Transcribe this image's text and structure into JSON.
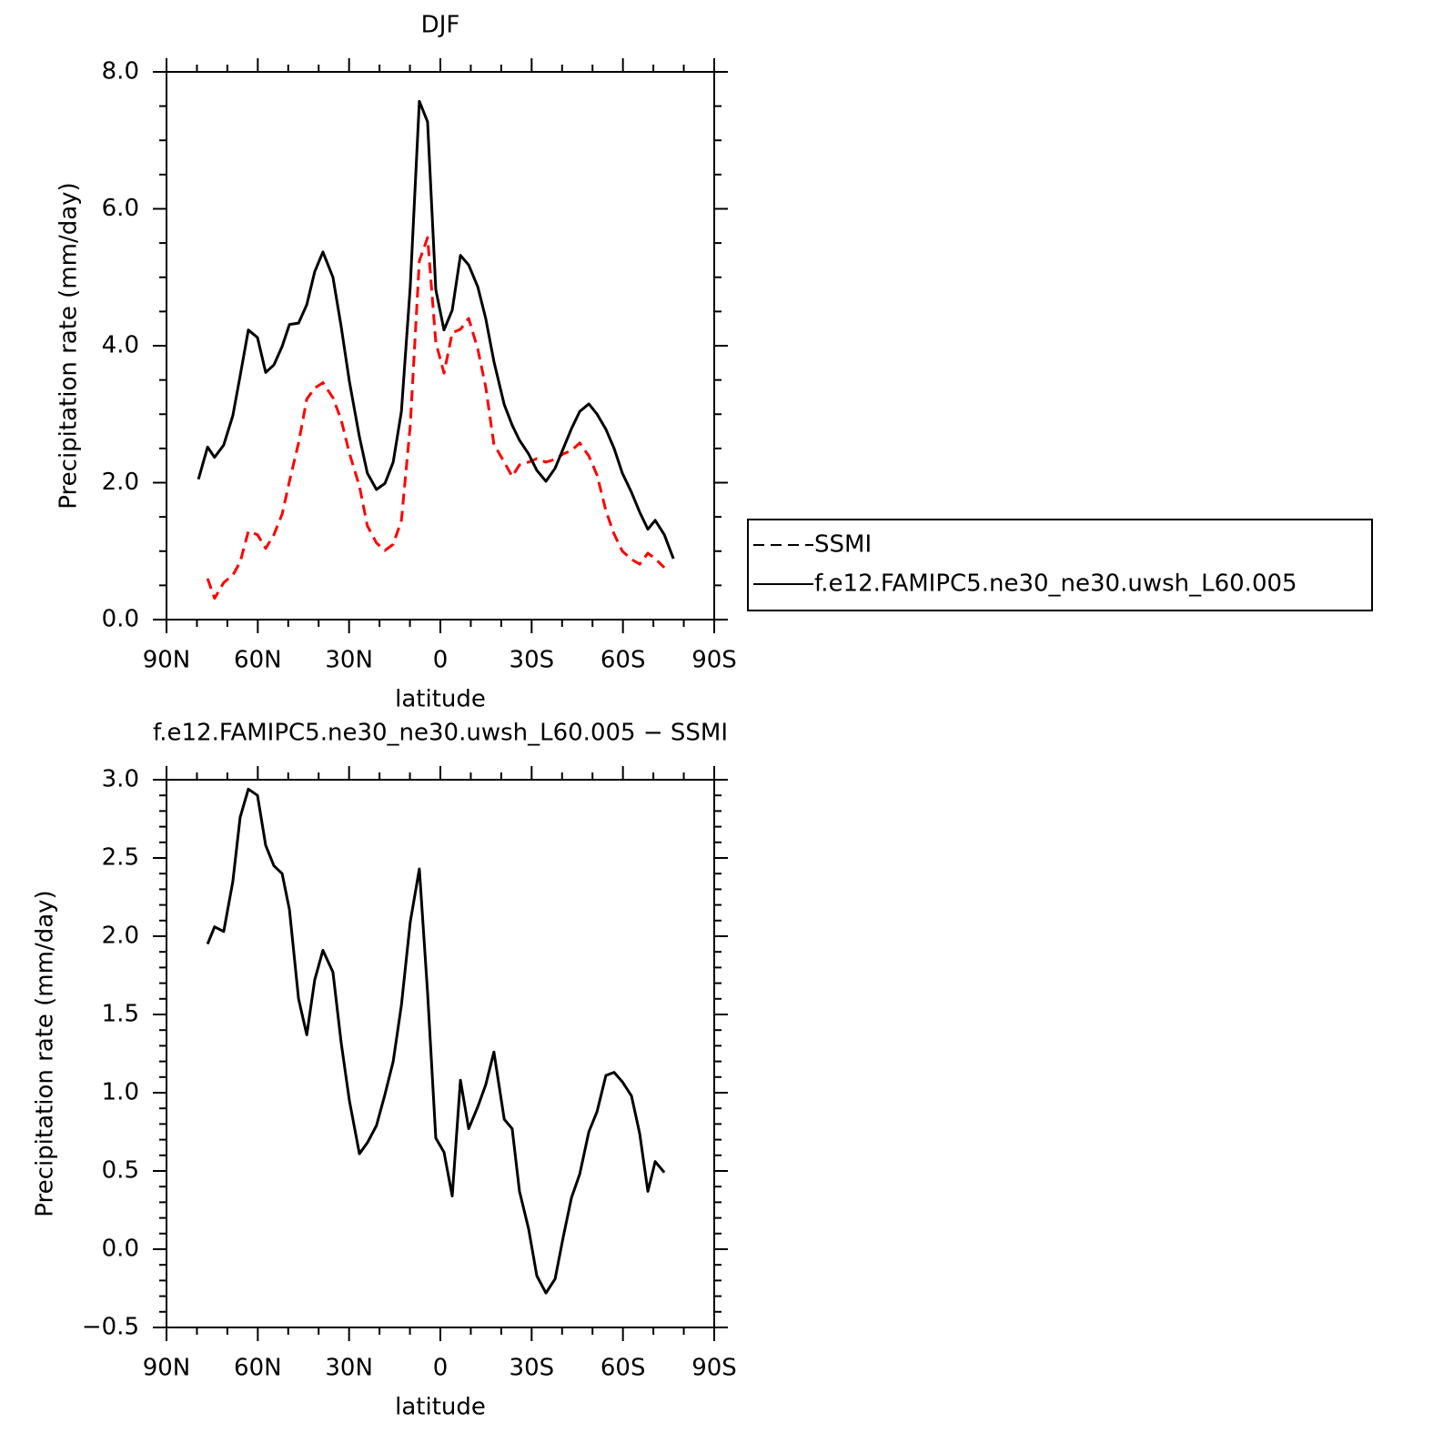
{
  "chart_data": [
    {
      "type": "line",
      "title": "DJF",
      "xlabel": "latitude",
      "ylabel": "Precipitation rate (mm/day)",
      "x": [
        79.5,
        76.5,
        74.2,
        71.2,
        68.2,
        65.8,
        63.1,
        60.1,
        57.4,
        54.7,
        52.0,
        49.6,
        46.6,
        43.9,
        41.3,
        38.6,
        35.3,
        32.6,
        29.9,
        26.6,
        24.0,
        21.0,
        18.2,
        15.5,
        12.8,
        9.9,
        6.9,
        4.2,
        1.5,
        -1.2,
        -3.9,
        -6.6,
        -9.3,
        -12.3,
        -14.9,
        -17.6,
        -21.0,
        -23.6,
        -26.0,
        -29.0,
        -31.7,
        -34.7,
        -37.7,
        -40.4,
        -43.1,
        -45.8,
        -48.8,
        -51.5,
        -54.4,
        -57.1,
        -59.8,
        -62.8,
        -65.5,
        -68.2,
        -70.6,
        -73.6,
        -76.6
      ],
      "series": [
        {
          "name": "SSMI",
          "color": "#ff0000",
          "dashed": true,
          "values": [
            null,
            0.6,
            0.31,
            0.54,
            0.65,
            0.84,
            1.29,
            1.24,
            1.04,
            1.24,
            1.54,
            2.02,
            2.58,
            3.22,
            3.38,
            3.46,
            3.24,
            2.92,
            2.43,
            1.95,
            1.37,
            1.12,
            1.01,
            1.1,
            1.45,
            2.83,
            5.24,
            5.58,
            4.05,
            3.6,
            4.19,
            4.24,
            4.4,
            3.95,
            3.4,
            2.56,
            2.3,
            2.09,
            2.26,
            2.3,
            2.35,
            2.3,
            2.34,
            2.42,
            2.47,
            2.58,
            2.39,
            2.11,
            1.59,
            1.25,
            1.0,
            0.88,
            0.81,
            0.97,
            0.89,
            0.76,
            null
          ]
        },
        {
          "name": "f.e12.FAMIPC5.ne30_ne30.uwsh_L60.005",
          "color": "#000000",
          "dashed": false,
          "values": [
            2.05,
            2.52,
            2.37,
            2.55,
            2.98,
            3.56,
            4.23,
            4.12,
            3.61,
            3.72,
            3.99,
            4.31,
            4.33,
            4.6,
            5.08,
            5.37,
            5.0,
            4.28,
            3.48,
            2.67,
            2.14,
            1.9,
            1.99,
            2.3,
            3.04,
            4.86,
            7.57,
            7.27,
            4.82,
            4.23,
            4.52,
            5.32,
            5.18,
            4.86,
            4.4,
            3.77,
            3.14,
            2.84,
            2.62,
            2.42,
            2.18,
            2.02,
            2.21,
            2.5,
            2.79,
            3.04,
            3.15,
            3.0,
            2.78,
            2.5,
            2.14,
            1.86,
            1.57,
            1.32,
            1.45,
            1.24,
            0.89
          ]
        }
      ],
      "xlim": [
        90,
        -90
      ],
      "xticks": [
        {
          "value": 90,
          "label": "90N"
        },
        {
          "value": 60,
          "label": "60N"
        },
        {
          "value": 30,
          "label": "30N"
        },
        0,
        {
          "value": -30,
          "label": "30S"
        },
        {
          "value": -60,
          "label": "60S"
        },
        {
          "value": -90,
          "label": "90S"
        }
      ],
      "ylim": [
        0,
        8
      ],
      "yticks": [
        {
          "value": 0,
          "label": "0.0"
        },
        {
          "value": 2,
          "label": "2.0"
        },
        {
          "value": 4,
          "label": "4.0"
        },
        {
          "value": 6,
          "label": "6.0"
        },
        {
          "value": 8,
          "label": "8.0"
        }
      ],
      "legend": "right"
    },
    {
      "type": "line",
      "title": "f.e12.FAMIPC5.ne30_ne30.uwsh_L60.005 − SSMI",
      "xlabel": "latitude",
      "ylabel": "Precipitation rate (mm/day)",
      "x": [
        76.5,
        74.2,
        71.2,
        68.2,
        65.8,
        63.1,
        60.1,
        57.4,
        54.7,
        52.0,
        49.6,
        46.6,
        43.9,
        41.3,
        38.6,
        35.3,
        32.6,
        29.9,
        26.6,
        24.0,
        21.0,
        18.2,
        15.5,
        12.8,
        9.9,
        6.9,
        4.2,
        1.5,
        -1.2,
        -3.9,
        -6.6,
        -9.3,
        -12.3,
        -14.9,
        -17.6,
        -21.0,
        -23.6,
        -26.0,
        -29.0,
        -31.7,
        -34.7,
        -37.7,
        -40.4,
        -43.1,
        -45.8,
        -48.8,
        -51.5,
        -54.4,
        -57.1,
        -59.8,
        -62.8,
        -65.5,
        -68.2,
        -70.6,
        -73.6
      ],
      "series": [
        {
          "color": "#000000",
          "dashed": false,
          "values": [
            1.95,
            2.06,
            2.03,
            2.35,
            2.76,
            2.94,
            2.9,
            2.58,
            2.45,
            2.4,
            2.17,
            1.6,
            1.37,
            1.72,
            1.91,
            1.77,
            1.32,
            0.95,
            0.61,
            0.68,
            0.79,
            0.99,
            1.2,
            1.56,
            2.09,
            2.43,
            1.64,
            0.71,
            0.62,
            0.34,
            1.08,
            0.77,
            0.91,
            1.05,
            1.26,
            0.83,
            0.77,
            0.37,
            0.13,
            -0.17,
            -0.28,
            -0.19,
            0.08,
            0.33,
            0.48,
            0.75,
            0.88,
            1.11,
            1.13,
            1.07,
            0.98,
            0.74,
            0.37,
            0.56,
            0.49
          ]
        }
      ],
      "xlim": [
        90,
        -90
      ],
      "xticks": [
        {
          "value": 90,
          "label": "90N"
        },
        {
          "value": 60,
          "label": "60N"
        },
        {
          "value": 30,
          "label": "30N"
        },
        0,
        {
          "value": -30,
          "label": "30S"
        },
        {
          "value": -60,
          "label": "60S"
        },
        {
          "value": -90,
          "label": "90S"
        }
      ],
      "ylim": [
        -0.5,
        3
      ],
      "yticks": [
        {
          "value": -0.5,
          "label": "−0.5"
        },
        {
          "value": 0,
          "label": "0.0"
        },
        0.5,
        {
          "value": 1,
          "label": "1.0"
        },
        1.5,
        {
          "value": 2,
          "label": "2.0"
        },
        2.5,
        {
          "value": 3,
          "label": "3.0"
        }
      ]
    }
  ]
}
